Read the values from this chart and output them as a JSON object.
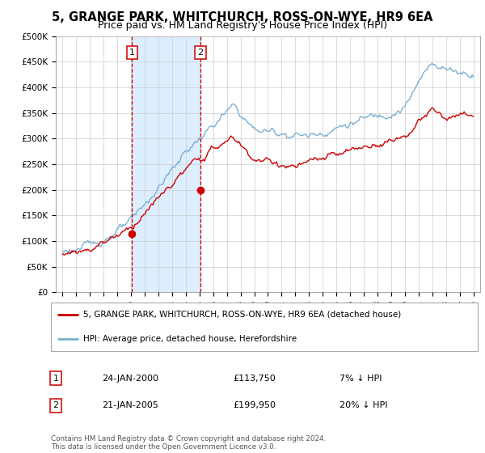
{
  "title": "5, GRANGE PARK, WHITCHURCH, ROSS-ON-WYE, HR9 6EA",
  "subtitle": "Price paid vs. HM Land Registry's House Price Index (HPI)",
  "ylabel_ticks": [
    "£0",
    "£50K",
    "£100K",
    "£150K",
    "£200K",
    "£250K",
    "£300K",
    "£350K",
    "£400K",
    "£450K",
    "£500K"
  ],
  "ytick_values": [
    0,
    50000,
    100000,
    150000,
    200000,
    250000,
    300000,
    350000,
    400000,
    450000,
    500000
  ],
  "ylim": [
    0,
    500000
  ],
  "xlim_start": 1994.5,
  "xlim_end": 2025.5,
  "hpi_color": "#7bafd4",
  "price_color": "#cc0000",
  "marker1_year": 2000.07,
  "marker1_price": 113750,
  "marker2_year": 2005.07,
  "marker2_price": 199950,
  "shade_color": "#ddeeff",
  "vline_color": "#cc0000",
  "background_color": "#ffffff",
  "grid_color": "#cccccc",
  "legend_label_red": "5, GRANGE PARK, WHITCHURCH, ROSS-ON-WYE, HR9 6EA (detached house)",
  "legend_label_blue": "HPI: Average price, detached house, Herefordshire",
  "table_row1": [
    "1",
    "24-JAN-2000",
    "£113,750",
    "7% ↓ HPI"
  ],
  "table_row2": [
    "2",
    "21-JAN-2005",
    "£199,950",
    "20% ↓ HPI"
  ],
  "footer": "Contains HM Land Registry data © Crown copyright and database right 2024.\nThis data is licensed under the Open Government Licence v3.0.",
  "title_fontsize": 10.5,
  "subtitle_fontsize": 9,
  "tick_fontsize": 7.5
}
